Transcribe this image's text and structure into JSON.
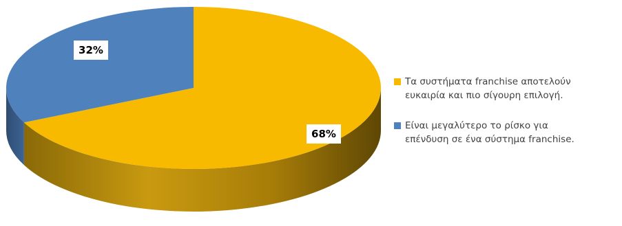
{
  "chart_data": {
    "type": "pie",
    "style": "3d-perspective",
    "series": [
      {
        "values": [
          68,
          32
        ],
        "labels": [
          "68%",
          "32%"
        ]
      }
    ],
    "categories": [
      "Τα συστήματα franchise αποτελούν\nευκαιρία και πιο σίγουρη επιλογή.",
      "Είναι μεγαλύτερο το ρίσκο για\nεπένδυση σε ένα σύστημα franchise."
    ],
    "colors": [
      "#F7BA00",
      "#4F81BD"
    ],
    "legend_position": "right"
  }
}
